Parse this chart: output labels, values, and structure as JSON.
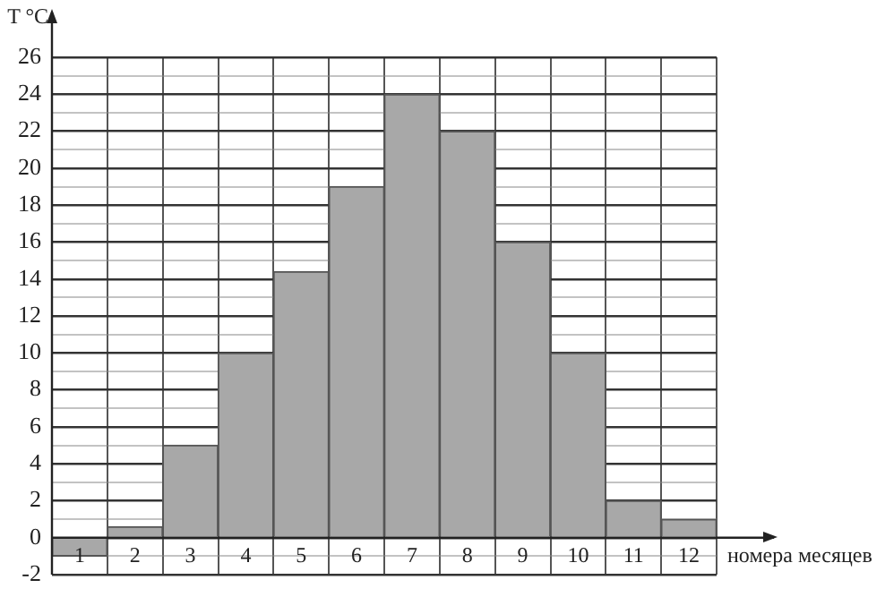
{
  "chart_data": {
    "type": "bar",
    "xlabel": "номера месяцев",
    "ylabel": "T °C",
    "categories": [
      "1",
      "2",
      "3",
      "4",
      "5",
      "6",
      "7",
      "8",
      "9",
      "10",
      "11",
      "12"
    ],
    "values": [
      -1,
      0.6,
      5,
      10,
      14.4,
      19,
      24,
      22,
      16,
      10,
      2,
      1
    ],
    "color": "#a8a8a8",
    "ylim": [
      -2,
      26
    ],
    "yticks": [
      -2,
      {
        "value": -1,
        "label": null
      },
      0,
      {
        "value": 1,
        "label": null
      },
      2,
      {
        "value": 3,
        "label": null
      },
      4,
      {
        "value": 5,
        "label": null
      },
      6,
      {
        "value": 7,
        "label": null
      },
      8,
      {
        "value": 9,
        "label": null
      },
      10,
      {
        "value": 11,
        "label": null
      },
      12,
      {
        "value": 13,
        "label": null
      },
      14,
      {
        "value": 15,
        "label": null
      },
      16,
      {
        "value": 17,
        "label": null
      },
      18,
      {
        "value": 19,
        "label": null
      },
      20,
      {
        "value": 21,
        "label": null
      },
      22,
      {
        "value": 23,
        "label": null
      },
      24,
      {
        "value": 25,
        "label": null
      },
      26
    ],
    "grid": true,
    "legend": false
  }
}
